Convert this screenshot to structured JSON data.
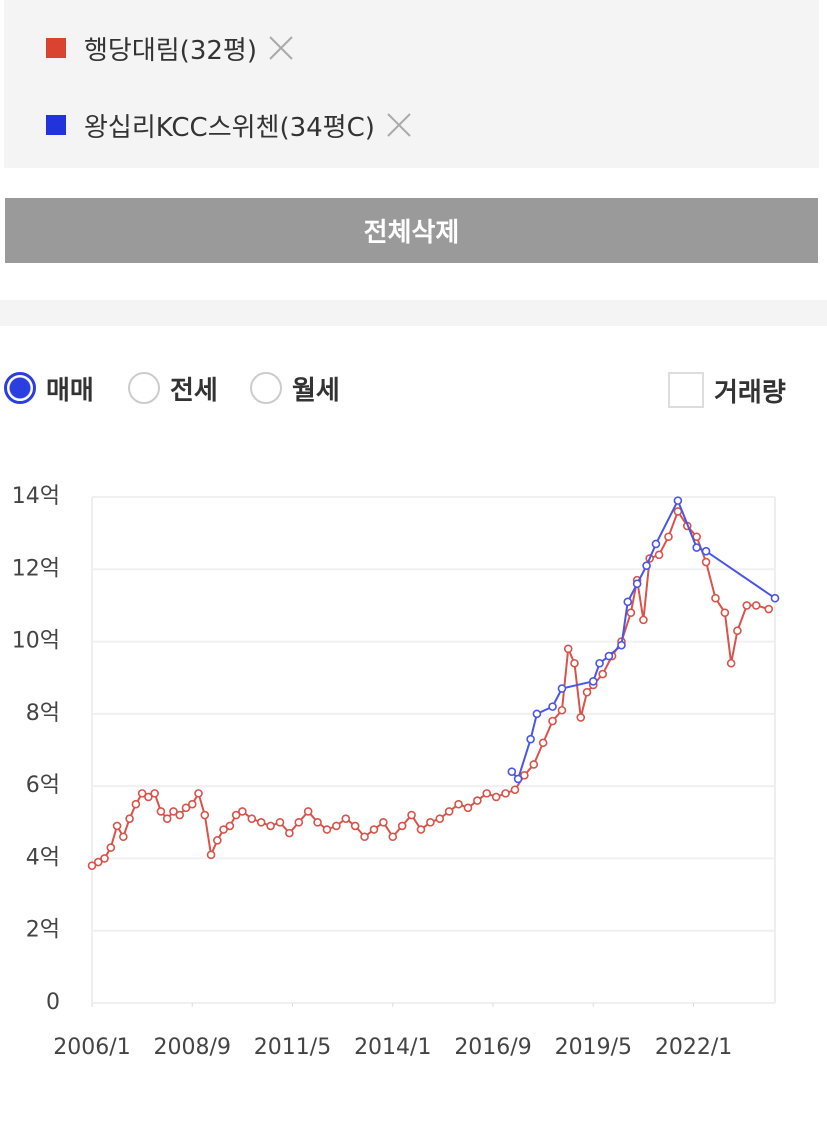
{
  "legend_items": [
    {
      "label": "행당대림(32평)",
      "color": "#d9432f"
    },
    {
      "label": "왕십리KCC스위첸(34평C)",
      "color": "#2233dd"
    }
  ],
  "delete_all": "전체삭제",
  "radio_options": [
    {
      "label": "매매",
      "checked": true
    },
    {
      "label": "전세",
      "checked": false
    },
    {
      "label": "월세",
      "checked": false
    }
  ],
  "checkbox": {
    "label": "거래량",
    "checked": false
  },
  "chart_data": {
    "type": "line",
    "grid": true,
    "xlim": [
      "2006-01",
      "2024-03"
    ],
    "xticks": [
      {
        "value": "2006-01",
        "label": "2006/1"
      },
      {
        "value": "2008-09",
        "label": "2008/9"
      },
      {
        "value": "2011-05",
        "label": "2011/5"
      },
      {
        "value": "2014-01",
        "label": "2014/1"
      },
      {
        "value": "2016-09",
        "label": "2016/9"
      },
      {
        "value": "2019-05",
        "label": "2019/5"
      },
      {
        "value": "2022-01",
        "label": "2022/1"
      }
    ],
    "ylim": [
      0,
      14
    ],
    "yticks": [
      0,
      {
        "value": 2,
        "label": "2억"
      },
      {
        "value": 4,
        "label": "4억"
      },
      {
        "value": 6,
        "label": "6억"
      },
      {
        "value": 8,
        "label": "8억"
      },
      {
        "value": 10,
        "label": "10억"
      },
      {
        "value": 12,
        "label": "12억"
      },
      {
        "value": 14,
        "label": "14억"
      }
    ],
    "series": [
      {
        "name": "행당대림(32평)",
        "color": "#d9534a",
        "x": [
          "2006-01",
          "2006-03",
          "2006-05",
          "2006-07",
          "2006-09",
          "2006-11",
          "2007-01",
          "2007-03",
          "2007-05",
          "2007-07",
          "2007-09",
          "2007-11",
          "2008-01",
          "2008-03",
          "2008-05",
          "2008-07",
          "2008-09",
          "2008-11",
          "2009-01",
          "2009-03",
          "2009-05",
          "2009-07",
          "2009-09",
          "2009-11",
          "2010-01",
          "2010-04",
          "2010-07",
          "2010-10",
          "2011-01",
          "2011-04",
          "2011-07",
          "2011-10",
          "2012-01",
          "2012-04",
          "2012-07",
          "2012-10",
          "2013-01",
          "2013-04",
          "2013-07",
          "2013-10",
          "2014-01",
          "2014-04",
          "2014-07",
          "2014-10",
          "2015-01",
          "2015-04",
          "2015-07",
          "2015-10",
          "2016-01",
          "2016-04",
          "2016-07",
          "2016-10",
          "2017-01",
          "2017-04",
          "2017-07",
          "2017-10",
          "2018-01",
          "2018-04",
          "2018-07",
          "2018-09",
          "2018-11",
          "2019-01",
          "2019-03",
          "2019-05",
          "2019-08",
          "2019-11",
          "2020-02",
          "2020-05",
          "2020-07",
          "2020-09",
          "2020-11",
          "2021-02",
          "2021-05",
          "2021-08",
          "2021-11",
          "2022-02",
          "2022-05",
          "2022-08",
          "2022-11",
          "2023-01",
          "2023-03",
          "2023-06",
          "2023-09",
          "2024-01"
        ],
        "values": [
          3.8,
          3.9,
          4.0,
          4.3,
          4.9,
          4.6,
          5.1,
          5.5,
          5.8,
          5.7,
          5.8,
          5.3,
          5.1,
          5.3,
          5.2,
          5.4,
          5.5,
          5.8,
          5.2,
          4.1,
          4.5,
          4.8,
          4.9,
          5.2,
          5.3,
          5.1,
          5.0,
          4.9,
          5.0,
          4.7,
          5.0,
          5.3,
          5.0,
          4.8,
          4.9,
          5.1,
          4.9,
          4.6,
          4.8,
          5.0,
          4.6,
          4.9,
          5.2,
          4.8,
          5.0,
          5.1,
          5.3,
          5.5,
          5.4,
          5.6,
          5.8,
          5.7,
          5.8,
          5.9,
          6.3,
          6.6,
          7.2,
          7.8,
          8.1,
          9.8,
          9.4,
          7.9,
          8.6,
          8.8,
          9.1,
          9.6,
          10.0,
          10.8,
          11.7,
          10.6,
          12.3,
          12.4,
          12.9,
          13.6,
          13.2,
          12.9,
          12.2,
          11.2,
          10.8,
          9.4,
          10.3,
          11.0,
          11.0,
          10.9
        ]
      },
      {
        "name": "왕십리KCC스위첸(34평C)",
        "color": "#4b55e6",
        "x": [
          "2017-03",
          "2017-05",
          "2017-09",
          "2017-11",
          "2018-04",
          "2018-07",
          "2019-05",
          "2019-07",
          "2019-10",
          "2020-02",
          "2020-04",
          "2020-07",
          "2020-10",
          "2021-01",
          "2021-08",
          "2022-02",
          "2022-05",
          "2024-03"
        ],
        "values": [
          6.4,
          6.2,
          7.3,
          8.0,
          8.2,
          8.7,
          8.9,
          9.4,
          9.6,
          9.9,
          11.1,
          11.6,
          12.1,
          12.7,
          13.9,
          12.6,
          12.5,
          11.2
        ]
      }
    ]
  }
}
